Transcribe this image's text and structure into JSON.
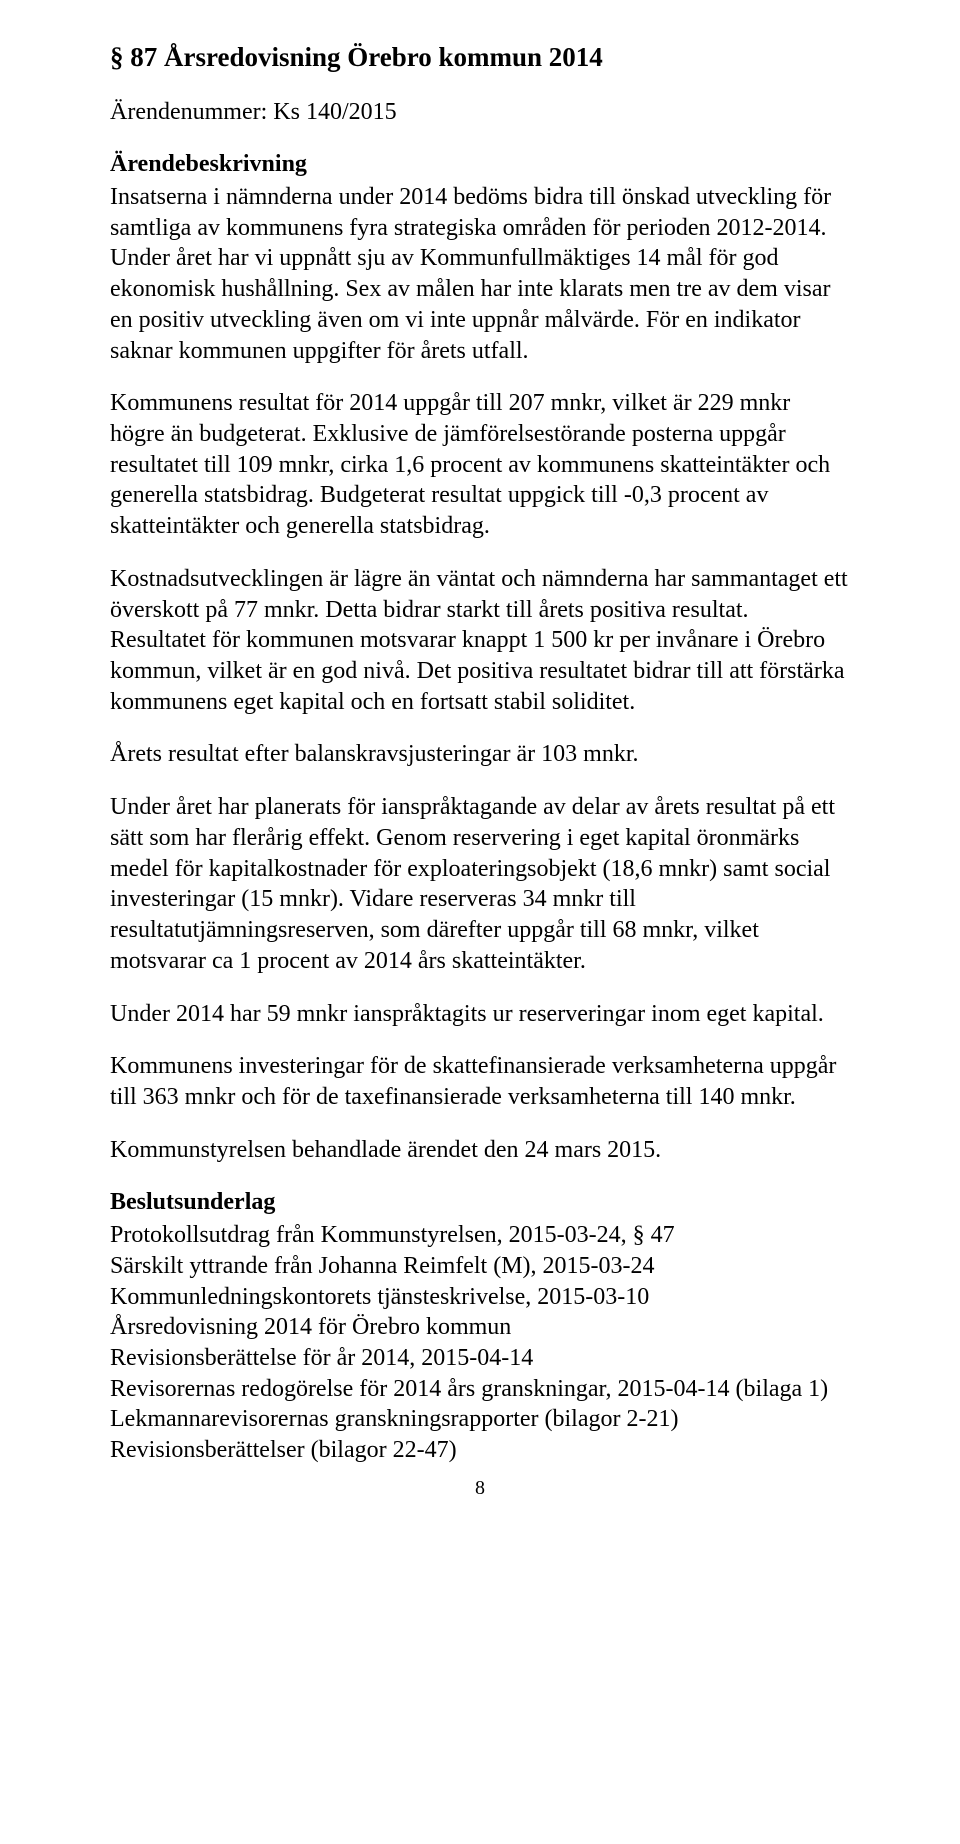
{
  "title": "§ 87 Årsredovisning Örebro kommun 2014",
  "arendenummer": "Ärendenummer: Ks 140/2015",
  "arendebeskrivning_label": "Ärendebeskrivning",
  "p1": "Insatserna i nämnderna under 2014 bedöms bidra till önskad utveckling för samtliga av kommunens fyra strategiska områden för perioden 2012-2014. Under året har vi uppnått sju av Kommunfullmäktiges 14 mål för god ekonomisk hushållning. Sex av målen har inte klarats men tre av dem visar en positiv utveckling även om vi inte uppnår målvärde. För en indikator saknar kommunen uppgifter för årets utfall.",
  "p2": "Kommunens resultat för 2014 uppgår till 207 mnkr, vilket är 229 mnkr högre än budgeterat. Exklusive de jämförelsestörande posterna uppgår resultatet till 109 mnkr, cirka 1,6 procent av kommunens skatteintäkter och generella statsbidrag. Budgeterat resultat uppgick till -0,3 procent av skatteintäkter och generella statsbidrag.",
  "p3": "Kostnadsutvecklingen är lägre än väntat och nämnderna har sammantaget ett överskott på 77 mnkr. Detta bidrar starkt till årets positiva resultat. Resultatet för kommunen motsvarar knappt 1 500 kr per invånare i Örebro kommun, vilket är en god nivå. Det positiva resultatet bidrar till att förstärka kommunens eget kapital och en fortsatt stabil soliditet.",
  "p4": "Årets resultat efter balanskravsjusteringar är 103 mnkr.",
  "p5": "Under året har planerats för ianspråktagande av delar av årets resultat på ett sätt som har flerårig effekt. Genom reservering i eget kapital öronmärks medel för kapitalkostnader för exploateringsobjekt (18,6 mnkr) samt social investeringar (15 mnkr). Vidare reserveras 34 mnkr till resultatutjämningsreserven, som därefter uppgår till 68 mnkr, vilket motsvarar ca 1 procent av 2014 års skatteintäkter.",
  "p6": "Under 2014 har 59 mnkr ianspråktagits ur reserveringar inom eget kapital.",
  "p7": "Kommunens investeringar för de skattefinansierade verksamheterna uppgår till 363 mnkr och för de taxefinansierade verksamheterna till 140 mnkr.",
  "p8": "Kommunstyrelsen behandlade ärendet den 24 mars 2015.",
  "beslutsunderlag_label": "Beslutsunderlag",
  "u1": "Protokollsutdrag från Kommunstyrelsen, 2015-03-24, § 47",
  "u2": "Särskilt yttrande från Johanna Reimfelt (M), 2015-03-24",
  "u3": "Kommunledningskontorets tjänsteskrivelse, 2015-03-10",
  "u4": "Årsredovisning 2014 för Örebro kommun",
  "u5": "Revisionsberättelse för år 2014, 2015-04-14",
  "u6": "Revisorernas redogörelse för 2014 års granskningar, 2015-04-14 (bilaga 1)",
  "u7": "Lekmannarevisorernas granskningsrapporter (bilagor 2-21)",
  "u8": "Revisionsberättelser (bilagor 22-47)",
  "page_number": "8"
}
